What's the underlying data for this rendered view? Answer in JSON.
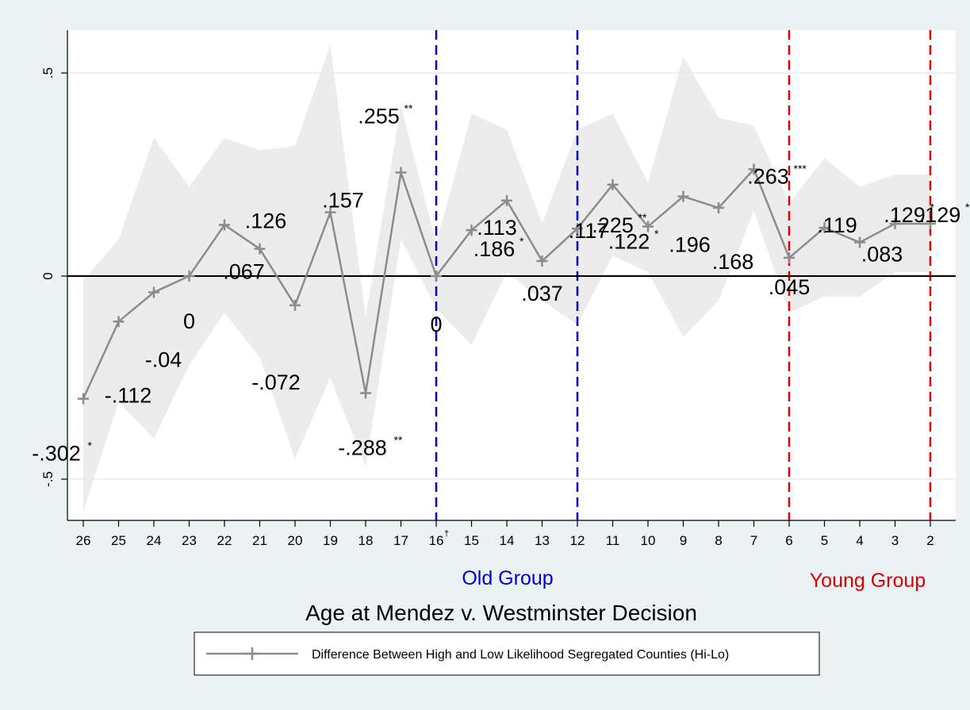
{
  "chart_data": {
    "type": "line",
    "title": "",
    "xlabel": "Age at Mendez v. Westminster Decision",
    "ylabel": "",
    "ylim": [
      -0.6,
      0.6
    ],
    "yticks": [
      {
        "value": -0.5,
        "label": "-.5"
      },
      {
        "value": 0,
        "label": "0"
      },
      {
        "value": 0.5,
        "label": ".5"
      }
    ],
    "xticks": [
      "26",
      "25",
      "24",
      "23",
      "22",
      "21",
      "20",
      "19",
      "18",
      "17",
      "16",
      "15",
      "14",
      "13",
      "12",
      "11",
      "10",
      "9",
      "8",
      "7",
      "6",
      "5",
      "4",
      "3",
      "2"
    ],
    "xtick_marks": {
      "16": "†"
    },
    "grid": true,
    "legend": {
      "position": "bottom",
      "label": "Difference Between High and Low Likelihood Segregated Counties (Hi-Lo)"
    },
    "colors": {
      "line": "#8c8c8c",
      "ci_band": "#e9e9e9",
      "old_group": "#0000cc",
      "young_group": "#dd0000",
      "zero_line": "#000000",
      "background": "#eaf2f3",
      "plot_bg": "#ffffff",
      "grid": "#eaf2f3"
    },
    "series": [
      {
        "name": "Difference Between High and Low Likelihood Segregated Counties (Hi-Lo)",
        "x": [
          "26",
          "25",
          "24",
          "23",
          "22",
          "21",
          "20",
          "19",
          "18",
          "17",
          "16",
          "15",
          "14",
          "13",
          "12",
          "11",
          "10",
          "9",
          "8",
          "7",
          "6",
          "5",
          "4",
          "3",
          "2"
        ],
        "values": [
          -0.302,
          -0.112,
          -0.04,
          0,
          0.126,
          0.067,
          -0.072,
          0.157,
          -0.288,
          0.255,
          0,
          0.113,
          0.186,
          0.037,
          0.117,
          0.225,
          0.122,
          0.196,
          0.168,
          0.263,
          0.045,
          0.119,
          0.083,
          0.129,
          0.129
        ],
        "ci_upper": [
          -0.01,
          0.09,
          0.34,
          0.22,
          0.34,
          0.31,
          0.32,
          0.57,
          -0.1,
          0.42,
          0.08,
          0.4,
          0.36,
          0.13,
          0.36,
          0.4,
          0.23,
          0.54,
          0.39,
          0.37,
          0.18,
          0.29,
          0.22,
          0.25,
          0.25
        ],
        "ci_lower": [
          -0.58,
          -0.31,
          -0.4,
          -0.22,
          -0.09,
          -0.2,
          -0.45,
          -0.25,
          -0.47,
          0.09,
          -0.08,
          -0.17,
          0.01,
          -0.06,
          -0.12,
          0.05,
          0.01,
          -0.15,
          -0.06,
          0.16,
          -0.09,
          -0.05,
          -0.05,
          0.01,
          0.01
        ]
      }
    ],
    "data_labels": [
      {
        "text": "-.302",
        "sig": "*"
      },
      {
        "text": "-.112",
        "sig": ""
      },
      {
        "text": "-.04",
        "sig": ""
      },
      {
        "text": "0",
        "sig": ""
      },
      {
        "text": ".126",
        "sig": ""
      },
      {
        "text": ".067",
        "sig": ""
      },
      {
        "text": "-.072",
        "sig": ""
      },
      {
        "text": ".157",
        "sig": ""
      },
      {
        "text": "-.288",
        "sig": "**"
      },
      {
        "text": ".255",
        "sig": "**"
      },
      {
        "text": "0",
        "sig": ""
      },
      {
        "text": ".113",
        "sig": ""
      },
      {
        "text": ".186",
        "sig": "*"
      },
      {
        "text": ".037",
        "sig": ""
      },
      {
        "text": ".117",
        "sig": ""
      },
      {
        "text": ".225",
        "sig": "**"
      },
      {
        "text": ".122",
        "sig": "*"
      },
      {
        "text": ".196",
        "sig": ""
      },
      {
        "text": ".168",
        "sig": ""
      },
      {
        "text": ".263",
        "sig": "***"
      },
      {
        "text": ".045",
        "sig": ""
      },
      {
        "text": ".119",
        "sig": ""
      },
      {
        "text": ".083",
        "sig": ""
      },
      {
        "text": ".129",
        "sig": "*"
      },
      {
        "text": ".129",
        "sig": "*"
      }
    ],
    "reference_lines": [
      {
        "x": "16",
        "color": "#0000cc",
        "style": "dashed"
      },
      {
        "x": "12",
        "color": "#0000cc",
        "style": "dashed"
      },
      {
        "x": "6",
        "color": "#dd0000",
        "style": "dashed"
      },
      {
        "x": "2",
        "color": "#dd0000",
        "style": "dashed"
      }
    ],
    "group_labels": [
      {
        "text": "Old Group",
        "color": "#0000cc"
      },
      {
        "text": "Young Group",
        "color": "#dd0000"
      }
    ]
  }
}
